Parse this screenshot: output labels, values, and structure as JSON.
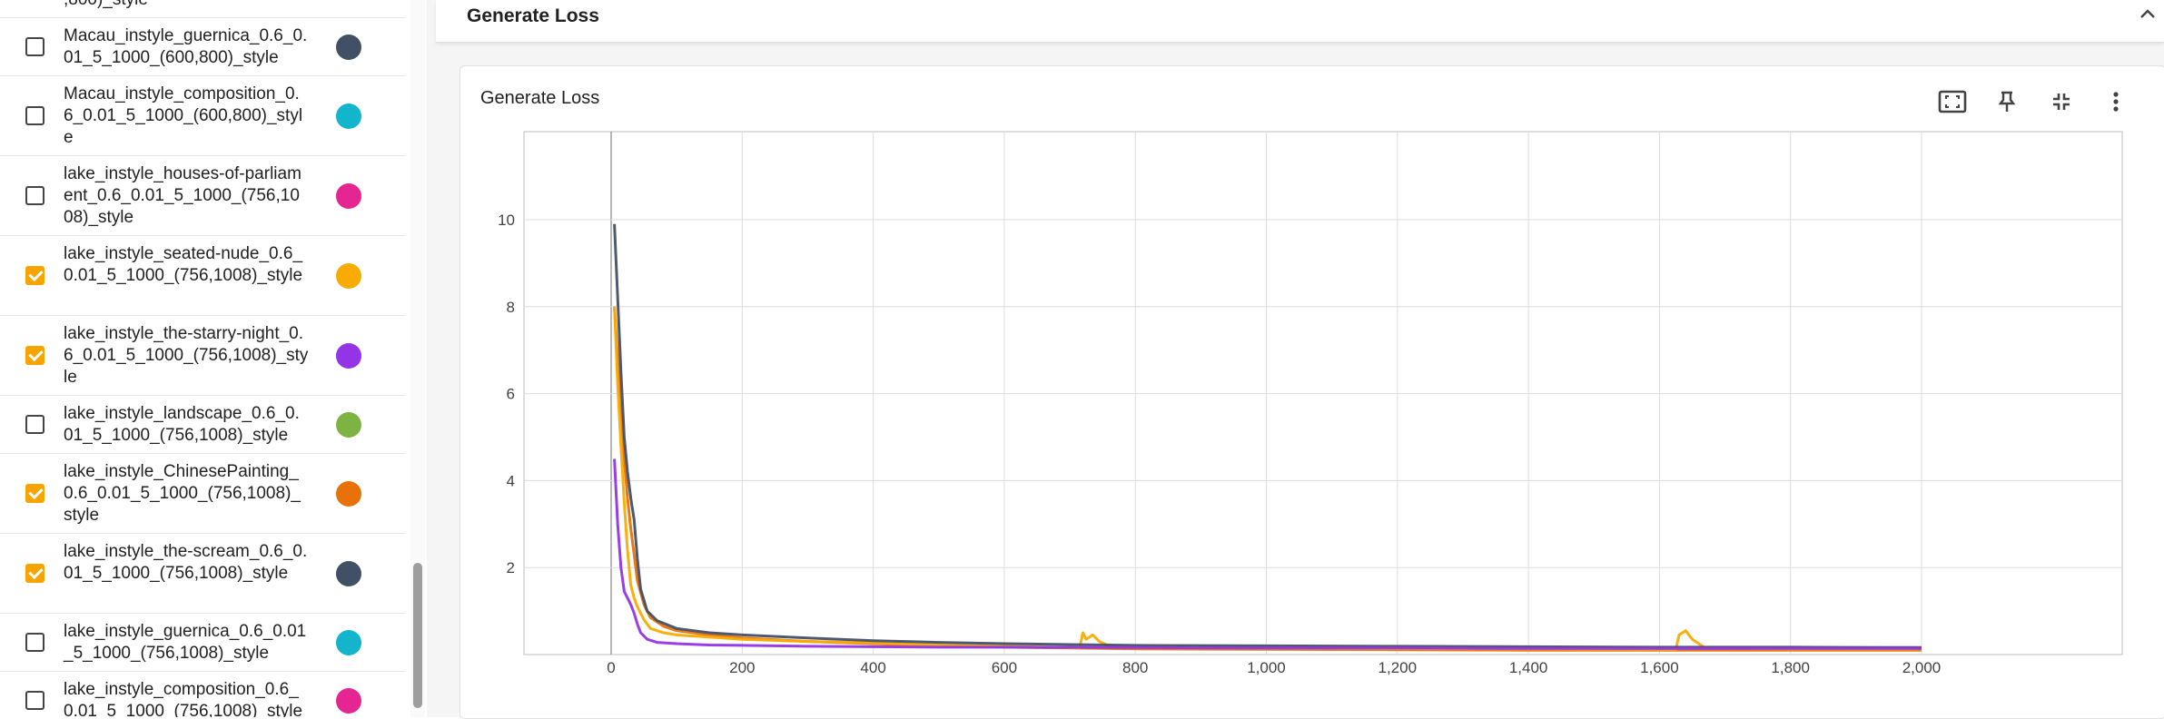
{
  "sidebar": {
    "runs": [
      {
        "label": ",800)_style",
        "checked": null,
        "color": null
      },
      {
        "label": "Macau_instyle_guernica_0.6_0.01_5_1000_(600,800)_style",
        "checked": false,
        "color": "#425066"
      },
      {
        "label": "Macau_instyle_composition_0.6_0.01_5_1000_(600,800)_style",
        "checked": false,
        "color": "#12b5cb"
      },
      {
        "label": "lake_instyle_houses-of-parliament_0.6_0.01_5_1000_(756,1008)_style",
        "checked": false,
        "color": "#e52592"
      },
      {
        "label": "lake_instyle_seated-nude_0.6_0.01_5_1000_(756,1008)_style",
        "checked": true,
        "color": "#f9ab00"
      },
      {
        "label": "lake_instyle_the-starry-night_0.6_0.01_5_1000_(756,1008)_style",
        "checked": true,
        "color": "#9334e6"
      },
      {
        "label": "lake_instyle_landscape_0.6_0.01_5_1000_(756,1008)_style",
        "checked": false,
        "color": "#7cb342"
      },
      {
        "label": "lake_instyle_ChinesePainting_0.6_0.01_5_1000_(756,1008)_style",
        "checked": true,
        "color": "#e8710a"
      },
      {
        "label": "lake_instyle_the-scream_0.6_0.01_5_1000_(756,1008)_style",
        "checked": true,
        "color": "#425066"
      },
      {
        "label": "lake_instyle_guernica_0.6_0.01_5_1000_(756,1008)_style",
        "checked": false,
        "color": "#12b5cb"
      },
      {
        "label": "lake_instyle_composition_0.6_0.01_5_1000_(756,1008)_style",
        "checked": false,
        "color": "#e52592"
      }
    ]
  },
  "section": {
    "title": "Generate Loss"
  },
  "card": {
    "title": "Generate Loss"
  },
  "icons": {
    "collapse": "chevron-up-icon",
    "fit": "fit-to-domain-icon",
    "pin": "pin-icon",
    "collapse_card": "exit-fullscreen-icon",
    "more": "more-vert-icon"
  },
  "chart_data": {
    "type": "line",
    "title": "Generate Loss",
    "xlim": [
      -200,
      2200
    ],
    "ylim": [
      0,
      11.8
    ],
    "x_ticks": [
      0,
      200,
      400,
      600,
      800,
      1000,
      1200,
      1400,
      1600,
      1800,
      2000
    ],
    "x_tick_labels": [
      "0",
      "200",
      "400",
      "600",
      "800",
      "1,000",
      "1,200",
      "1,400",
      "1,600",
      "1,800",
      "2,000"
    ],
    "y_ticks": [
      2,
      4,
      6,
      8,
      10
    ],
    "y_tick_labels": [
      "2",
      "4",
      "6",
      "8",
      "10"
    ],
    "grid": true,
    "series": [
      {
        "color": "#e8710a",
        "points": [
          [
            5,
            8.0
          ],
          [
            10,
            6.8
          ],
          [
            15,
            5.6
          ],
          [
            20,
            4.5
          ],
          [
            25,
            3.6
          ],
          [
            30,
            2.9
          ],
          [
            35,
            2.3
          ],
          [
            40,
            1.7
          ],
          [
            50,
            1.15
          ],
          [
            60,
            0.85
          ],
          [
            80,
            0.65
          ],
          [
            100,
            0.55
          ],
          [
            150,
            0.45
          ],
          [
            200,
            0.38
          ],
          [
            300,
            0.3
          ],
          [
            400,
            0.25
          ],
          [
            500,
            0.2
          ],
          [
            600,
            0.17
          ],
          [
            700,
            0.15
          ],
          [
            800,
            0.13
          ],
          [
            1000,
            0.12
          ],
          [
            1200,
            0.11
          ],
          [
            1400,
            0.1
          ],
          [
            1600,
            0.1
          ],
          [
            1800,
            0.1
          ],
          [
            2000,
            0.1
          ]
        ]
      },
      {
        "color": "#f9ab00",
        "points": [
          [
            5,
            8.0
          ],
          [
            10,
            6.2
          ],
          [
            15,
            4.8
          ],
          [
            20,
            3.5
          ],
          [
            25,
            2.4
          ],
          [
            30,
            1.6
          ],
          [
            35,
            1.3
          ],
          [
            40,
            1.1
          ],
          [
            50,
            0.8
          ],
          [
            60,
            0.6
          ],
          [
            80,
            0.5
          ],
          [
            100,
            0.45
          ],
          [
            150,
            0.4
          ],
          [
            200,
            0.35
          ],
          [
            300,
            0.3
          ],
          [
            400,
            0.27
          ],
          [
            500,
            0.22
          ],
          [
            600,
            0.19
          ],
          [
            700,
            0.16
          ],
          [
            715,
            0.15
          ],
          [
            720,
            0.5
          ],
          [
            725,
            0.35
          ],
          [
            735,
            0.45
          ],
          [
            745,
            0.3
          ],
          [
            760,
            0.2
          ],
          [
            800,
            0.17
          ],
          [
            1000,
            0.15
          ],
          [
            1200,
            0.14
          ],
          [
            1400,
            0.13
          ],
          [
            1600,
            0.12
          ],
          [
            1625,
            0.12
          ],
          [
            1630,
            0.45
          ],
          [
            1640,
            0.55
          ],
          [
            1650,
            0.35
          ],
          [
            1660,
            0.25
          ],
          [
            1670,
            0.15
          ],
          [
            1800,
            0.13
          ],
          [
            2000,
            0.13
          ]
        ]
      },
      {
        "color": "#425066",
        "points": [
          [
            5,
            9.9
          ],
          [
            10,
            8.2
          ],
          [
            15,
            6.5
          ],
          [
            20,
            5.0
          ],
          [
            25,
            4.2
          ],
          [
            30,
            3.6
          ],
          [
            35,
            3.1
          ],
          [
            40,
            2.2
          ],
          [
            45,
            1.5
          ],
          [
            55,
            1.0
          ],
          [
            70,
            0.78
          ],
          [
            100,
            0.6
          ],
          [
            150,
            0.5
          ],
          [
            200,
            0.45
          ],
          [
            300,
            0.38
          ],
          [
            400,
            0.32
          ],
          [
            500,
            0.28
          ],
          [
            600,
            0.25
          ],
          [
            700,
            0.23
          ],
          [
            800,
            0.21
          ],
          [
            1000,
            0.2
          ],
          [
            1200,
            0.19
          ],
          [
            1400,
            0.18
          ],
          [
            1600,
            0.17
          ],
          [
            1800,
            0.17
          ],
          [
            2000,
            0.16
          ]
        ]
      },
      {
        "color": "#9334e6",
        "points": [
          [
            5,
            4.5
          ],
          [
            10,
            3.0
          ],
          [
            15,
            2.0
          ],
          [
            20,
            1.45
          ],
          [
            25,
            1.3
          ],
          [
            30,
            1.15
          ],
          [
            35,
            0.95
          ],
          [
            40,
            0.7
          ],
          [
            45,
            0.5
          ],
          [
            55,
            0.35
          ],
          [
            70,
            0.28
          ],
          [
            100,
            0.25
          ],
          [
            150,
            0.22
          ],
          [
            200,
            0.21
          ],
          [
            300,
            0.19
          ],
          [
            400,
            0.18
          ],
          [
            500,
            0.17
          ],
          [
            600,
            0.17
          ],
          [
            800,
            0.16
          ],
          [
            1000,
            0.15
          ],
          [
            1200,
            0.15
          ],
          [
            1400,
            0.14
          ],
          [
            1600,
            0.14
          ],
          [
            1800,
            0.14
          ],
          [
            2000,
            0.14
          ]
        ]
      }
    ]
  }
}
